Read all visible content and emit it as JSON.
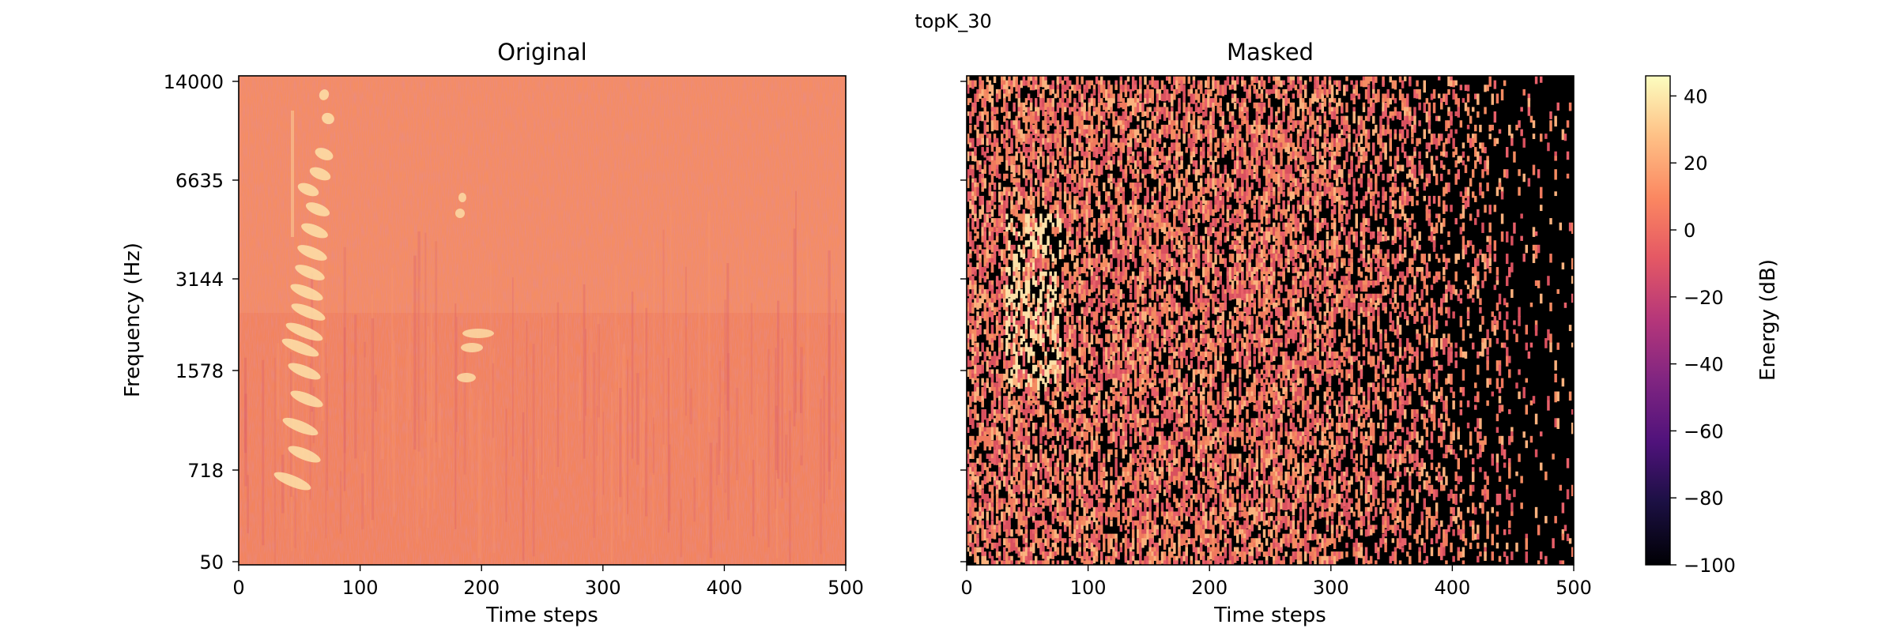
{
  "figure": {
    "suptitle": "topK_30"
  },
  "chart_data": [
    {
      "type": "heatmap",
      "title": "Original",
      "xlabel": "Time steps",
      "ylabel": "Frequency (Hz)",
      "xlim": [
        0,
        500
      ],
      "x_ticks": [
        0,
        100,
        200,
        300,
        400,
        500
      ],
      "y_ticks": [
        "14000",
        "6635",
        "3144",
        "1578",
        "718",
        "50"
      ],
      "y_scale": "mel (approx. log)",
      "colormap": "magma",
      "description_values": {
        "background_dB": 10,
        "max_dB": 45
      }
    },
    {
      "type": "heatmap",
      "title": "Masked",
      "xlabel": "Time steps",
      "xlim": [
        0,
        500
      ],
      "x_ticks": [
        0,
        100,
        200,
        300,
        400,
        500
      ],
      "y_tick_labels_visible": false,
      "colormap": "magma",
      "masked_value_dB": -100,
      "top_k_percent": 30
    }
  ],
  "colorbar": {
    "label": "Energy (dB)",
    "ticks": [
      "40",
      "20",
      "0",
      "−20",
      "−40",
      "−60",
      "−80",
      "−100"
    ],
    "tick_values": [
      40,
      20,
      0,
      -20,
      -40,
      -60,
      -80,
      -100
    ],
    "range": [
      -100,
      46
    ]
  },
  "colors": {
    "cmap_low": "#000004",
    "cmap_mid": "#b73779",
    "cmap_high": "#fcfdbf",
    "masked": "#000000"
  }
}
